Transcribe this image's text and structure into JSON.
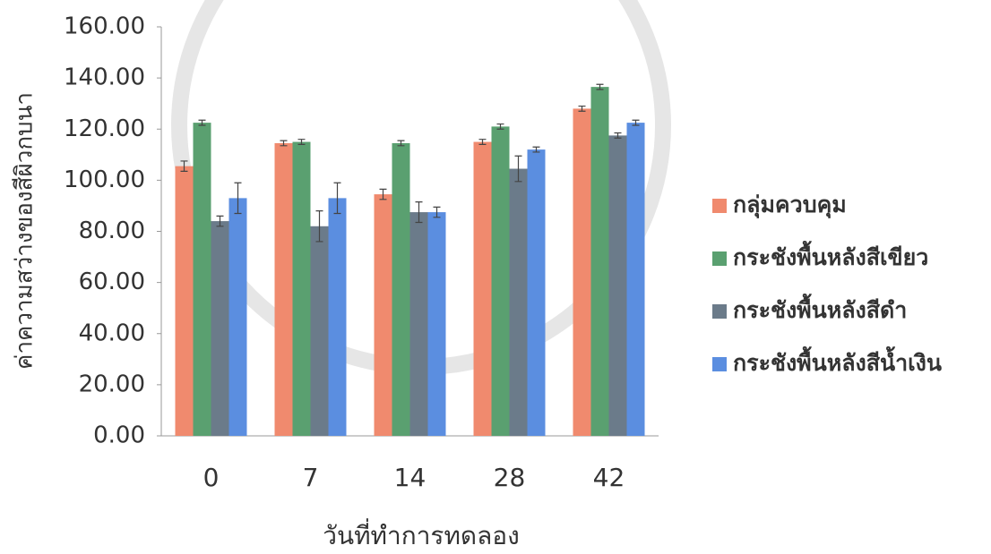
{
  "chart_data": {
    "type": "bar",
    "y_label": "ค่าความสว่างของสีผิวกบนา",
    "x_label": "วันที่ทำการทดลอง",
    "categories": [
      "0",
      "7",
      "14",
      "28",
      "42"
    ],
    "series": [
      {
        "name": "กลุ่มควบคุม",
        "color": "#f08a6e",
        "values": [
          105.5,
          114.5,
          94.5,
          115,
          128
        ],
        "errors": [
          2,
          1,
          2,
          1,
          1
        ]
      },
      {
        "name": "กระชังพื้นหลังสีเขียว",
        "color": "#5aa070",
        "values": [
          122.5,
          115,
          114.5,
          121,
          136.5
        ],
        "errors": [
          1,
          1,
          1,
          1,
          1
        ]
      },
      {
        "name": "กระชังพื้นหลังสีดำ",
        "color": "#6b7b8a",
        "values": [
          84,
          82,
          87.5,
          104.5,
          117.5
        ],
        "errors": [
          2,
          6,
          4,
          5,
          1
        ]
      },
      {
        "name": "กระชังพื้นหลังสีน้ำเงิน",
        "color": "#5b8ee0",
        "values": [
          93,
          93,
          87.5,
          112,
          122.5
        ],
        "errors": [
          6,
          6,
          2,
          1,
          1
        ]
      }
    ],
    "ylim": [
      0,
      160
    ],
    "yticks": [
      {
        "value": 0,
        "label": "0.00"
      },
      {
        "value": 20,
        "label": "20.00"
      },
      {
        "value": 40,
        "label": "40.00"
      },
      {
        "value": 60,
        "label": "60.00"
      },
      {
        "value": 80,
        "label": "80.00"
      },
      {
        "value": 100,
        "label": "100.00"
      },
      {
        "value": 120,
        "label": "120.00"
      },
      {
        "value": 140,
        "label": "140.00"
      },
      {
        "value": 160,
        "label": "160.00"
      }
    ],
    "legend": "right"
  }
}
